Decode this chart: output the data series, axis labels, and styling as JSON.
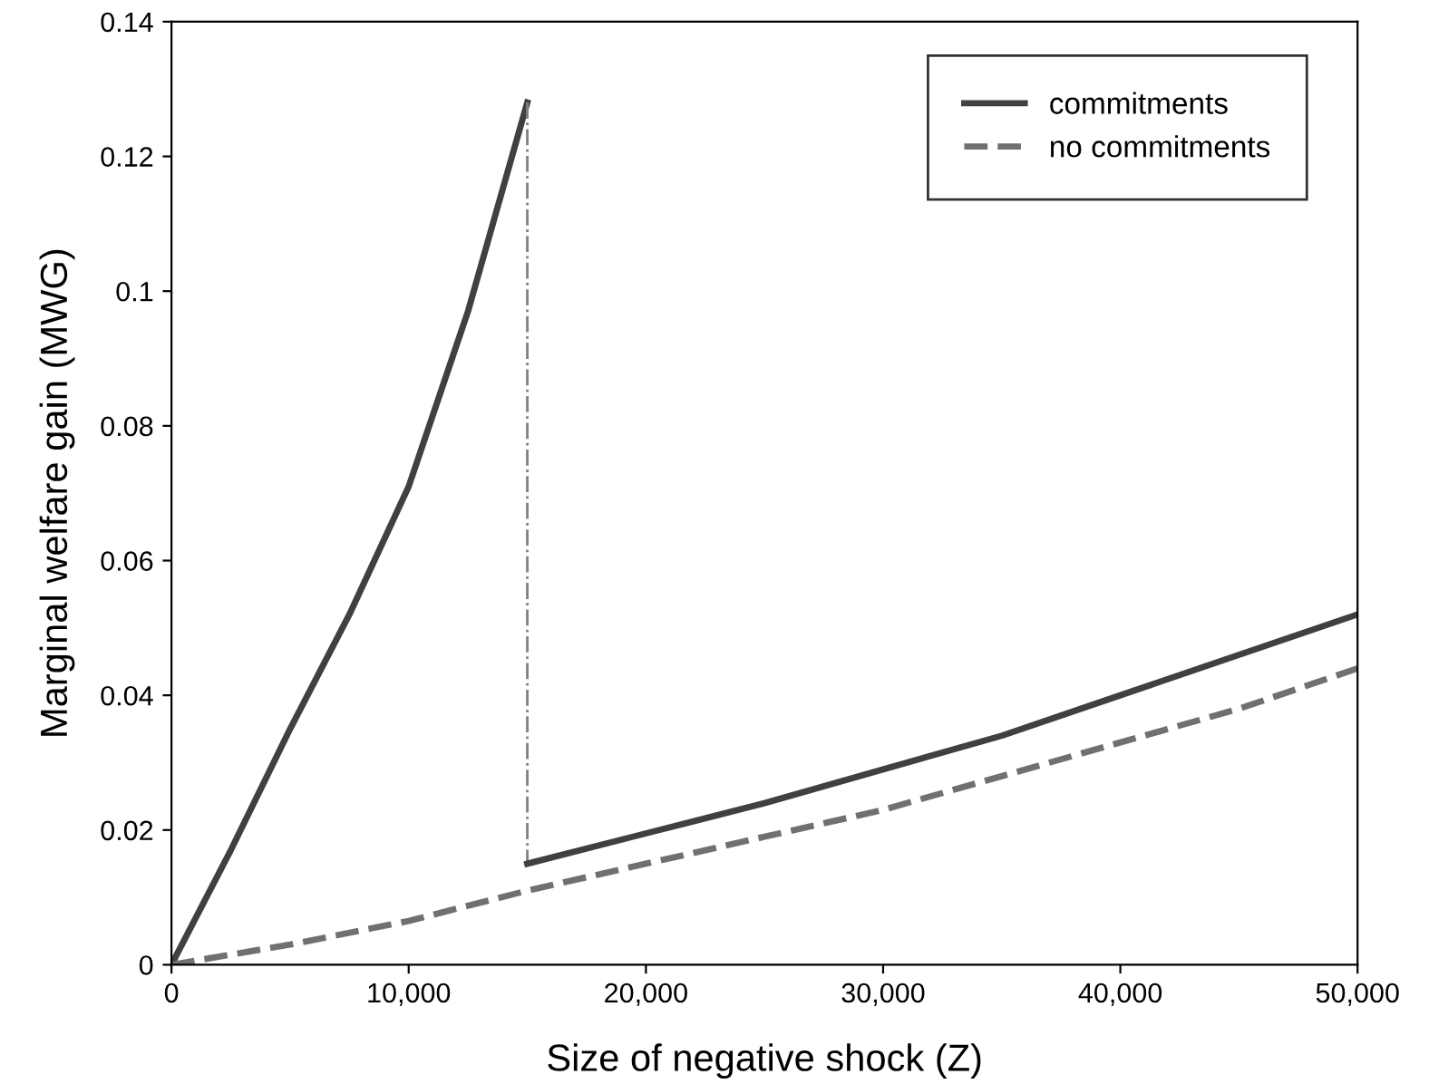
{
  "chart_data": {
    "type": "line",
    "xlabel": "Size of negative shock (Z)",
    "ylabel": "Marginal welfare gain (MWG)",
    "xlim": [
      0,
      50000
    ],
    "ylim": [
      0,
      0.14
    ],
    "xticks": [
      0,
      {
        "value": 10000,
        "label": "10,000"
      },
      {
        "value": 20000,
        "label": "20,000"
      },
      {
        "value": 30000,
        "label": "30,000"
      },
      {
        "value": 40000,
        "label": "40,000"
      },
      {
        "value": 50000,
        "label": "50,000"
      }
    ],
    "yticks": [
      0,
      0.02,
      0.04,
      0.06,
      0.08,
      0.1,
      0.12,
      0.14
    ],
    "grid": false,
    "legend": "top right",
    "marker": "none",
    "series": [
      {
        "name": "commitments",
        "color": "#404040",
        "line_style": "solid",
        "x": [
          0,
          2500,
          5000,
          7500,
          10000,
          12500,
          15000
        ],
        "values": [
          0,
          0.017,
          0.035,
          0.052,
          0.071,
          0.097,
          0.128
        ]
      },
      {
        "color": "#808080",
        "line_style": "dashdot",
        "x": [
          15000,
          15000
        ],
        "values": [
          0.128,
          0.015
        ]
      },
      {
        "color": "#404040",
        "line_style": "solid",
        "x": [
          15000,
          20000,
          25000,
          30000,
          35000,
          40000,
          45000,
          50000
        ],
        "values": [
          0.015,
          0.0195,
          0.024,
          0.029,
          0.034,
          0.04,
          0.046,
          0.052
        ]
      },
      {
        "name": "no commitments",
        "color": "#707070",
        "line_style": "dashed",
        "x": [
          0,
          5000,
          10000,
          15000,
          20000,
          25000,
          30000,
          35000,
          40000,
          45000,
          50000
        ],
        "values": [
          0,
          0.003,
          0.0065,
          0.011,
          0.015,
          0.019,
          0.023,
          0.028,
          0.033,
          0.038,
          0.044
        ]
      }
    ]
  }
}
